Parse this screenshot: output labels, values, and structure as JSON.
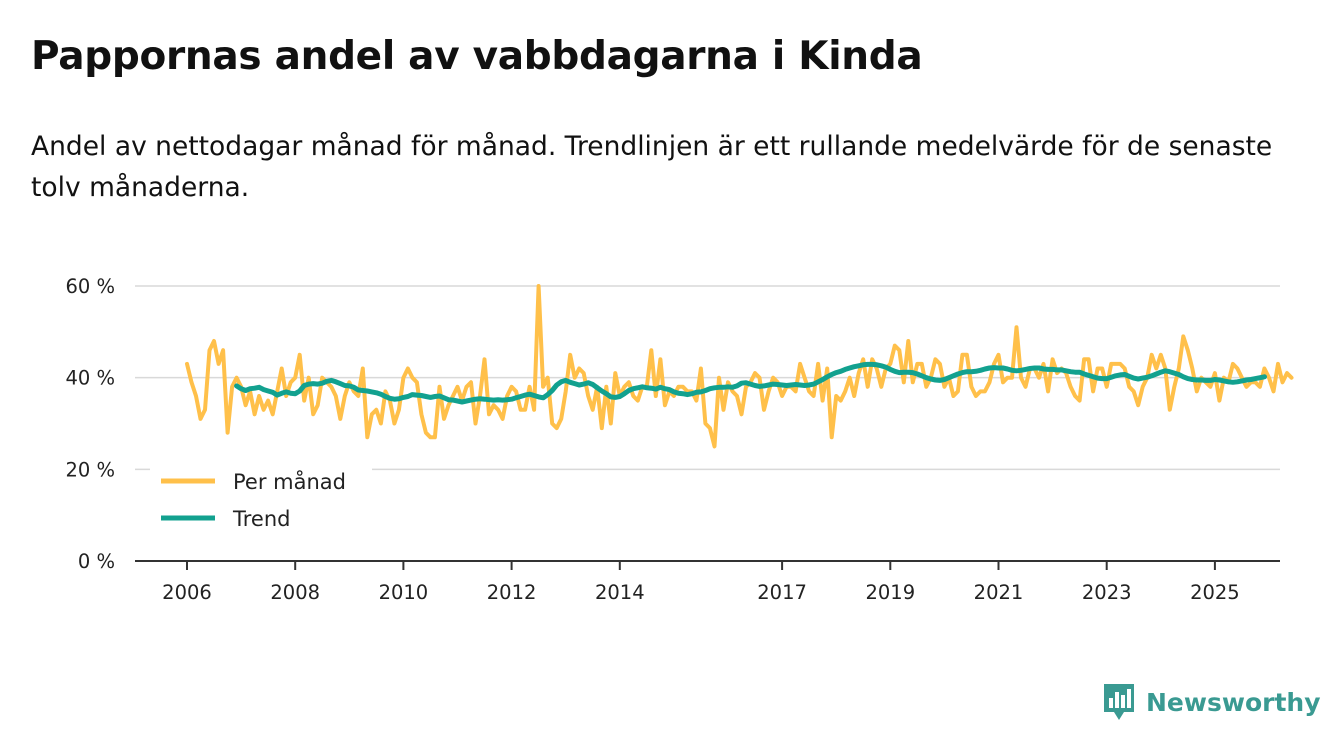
{
  "title": "Pappornas andel av vabbdagarna i Kinda",
  "subtitle": "Andel av nettodagar månad för månad. Trendlinjen är ett rullande medelvärde för de senaste tolv månaderna.",
  "brand": {
    "name": "Newsworthy",
    "icon": "bar-chart-speech-bubble-icon",
    "color": "#3a9a92"
  },
  "chart_data": {
    "type": "line",
    "title": "Pappornas andel av vabbdagarna i Kinda",
    "xlabel": "",
    "ylabel": "",
    "ylim": [
      0,
      60
    ],
    "xlim": [
      2006.0,
      2025.5
    ],
    "y_ticks": [
      0,
      20,
      40,
      60
    ],
    "y_tick_labels": [
      "0 %",
      "20 %",
      "40 %",
      "60 %"
    ],
    "x_ticks": [
      2006,
      2008,
      2010,
      2012,
      2014,
      2017,
      2019,
      2021,
      2023,
      2025
    ],
    "x_tick_labels": [
      "2006",
      "2008",
      "2010",
      "2012",
      "2014",
      "2017",
      "2019",
      "2021",
      "2023",
      "2025"
    ],
    "grid": true,
    "legend_position": "bottom-left",
    "series": [
      {
        "name": "Per månad",
        "color": "#ffc04a",
        "x_start": 2006.0,
        "x_step": 0.08333,
        "values": [
          43,
          39,
          36,
          31,
          33,
          46,
          48,
          43,
          46,
          28,
          38,
          40,
          38,
          34,
          37,
          32,
          36,
          33,
          35,
          32,
          37,
          42,
          36,
          39,
          40,
          45,
          35,
          40,
          32,
          34,
          40,
          39,
          38,
          36,
          31,
          36,
          39,
          37,
          36,
          42,
          27,
          32,
          33,
          30,
          37,
          35,
          30,
          33,
          40,
          42,
          40,
          39,
          32,
          28,
          27,
          27,
          38,
          31,
          34,
          36,
          38,
          35,
          38,
          39,
          30,
          36,
          44,
          32,
          34,
          33,
          31,
          36,
          38,
          37,
          33,
          33,
          38,
          33,
          60,
          38,
          40,
          30,
          29,
          31,
          37,
          45,
          40,
          42,
          41,
          36,
          33,
          38,
          29,
          38,
          30,
          41,
          36,
          38,
          39,
          36,
          35,
          38,
          38,
          46,
          36,
          44,
          34,
          37,
          36,
          38,
          38,
          37,
          37,
          35,
          42,
          30,
          29,
          25,
          40,
          33,
          39,
          37,
          36,
          32,
          38,
          39,
          41,
          40,
          33,
          37,
          40,
          39,
          36,
          38,
          38,
          37,
          43,
          40,
          37,
          36,
          43,
          35,
          42,
          27,
          36,
          35,
          37,
          40,
          36,
          41,
          44,
          38,
          44,
          42,
          38,
          42,
          43,
          47,
          46,
          39,
          48,
          39,
          43,
          43,
          38,
          40,
          44,
          43,
          38,
          40,
          36,
          37,
          45,
          45,
          38,
          36,
          37,
          37,
          39,
          43,
          45,
          39,
          40,
          40,
          51,
          40,
          38,
          42,
          42,
          40,
          43,
          37,
          44,
          41,
          42,
          41,
          38,
          36,
          35,
          44,
          44,
          37,
          42,
          42,
          38,
          43,
          43,
          43,
          42,
          38,
          37,
          34,
          38,
          40,
          45,
          42,
          45,
          42,
          33,
          38,
          42,
          49,
          46,
          42,
          37,
          40,
          39,
          38,
          41,
          35,
          40,
          39,
          43,
          42,
          40,
          38,
          39,
          39,
          38,
          42,
          40,
          37,
          43,
          39,
          41,
          40
        ]
      },
      {
        "name": "Trend",
        "color": "#12a18f",
        "x_start": 2006.917,
        "x_step": 0.08333,
        "values": [
          38.2,
          37.6,
          37.2,
          37.6,
          37.7,
          37.9,
          37.4,
          37.1,
          36.8,
          36.2,
          36.6,
          36.9,
          36.6,
          36.5,
          37.1,
          38.3,
          38.6,
          38.7,
          38.6,
          38.8,
          39.2,
          39.4,
          39.1,
          38.7,
          38.3,
          38.2,
          37.9,
          37.3,
          37.2,
          37.1,
          36.9,
          36.7,
          36.4,
          35.9,
          35.5,
          35.3,
          35.4,
          35.7,
          35.9,
          36.3,
          36.2,
          36.1,
          35.9,
          35.7,
          35.9,
          36,
          35.6,
          35.2,
          35.1,
          34.9,
          34.7,
          34.9,
          35.1,
          35.3,
          35.4,
          35.3,
          35.2,
          35.1,
          35.2,
          35.1,
          35.2,
          35.3,
          35.6,
          35.9,
          36.2,
          36.4,
          36.1,
          35.8,
          35.6,
          36.3,
          37.2,
          38.4,
          39.1,
          39.4,
          39,
          38.7,
          38.4,
          38.6,
          38.9,
          38.5,
          37.8,
          37.1,
          36.5,
          35.8,
          35.7,
          35.9,
          36.5,
          37.2,
          37.6,
          37.8,
          38,
          37.8,
          37.7,
          37.5,
          37.9,
          37.6,
          37.4,
          36.9,
          36.6,
          36.5,
          36.3,
          36.5,
          36.8,
          36.9,
          37.2,
          37.6,
          37.8,
          37.9,
          37.9,
          38,
          37.9,
          38.2,
          38.8,
          38.9,
          38.6,
          38.3,
          38.1,
          38.2,
          38.4,
          38.6,
          38.5,
          38.4,
          38.3,
          38.4,
          38.5,
          38.4,
          38.3,
          38.4,
          38.6,
          39.1,
          39.6,
          40.2,
          40.7,
          41.1,
          41.4,
          41.8,
          42.1,
          42.4,
          42.6,
          42.8,
          42.9,
          42.9,
          42.8,
          42.6,
          42.3,
          41.8,
          41.4,
          41.1,
          41.2,
          41.2,
          41.1,
          40.8,
          40.4,
          40.0,
          39.7,
          39.5,
          39.4,
          39.6,
          40,
          40.4,
          40.8,
          41.1,
          41.3,
          41.3,
          41.4,
          41.6,
          41.9,
          42.1,
          42.2,
          42.1,
          42.1,
          41.9,
          41.6,
          41.5,
          41.6,
          41.8,
          42,
          42.1,
          42.1,
          41.9,
          41.8,
          41.8,
          41.7,
          41.7,
          41.5,
          41.3,
          41.2,
          41.2,
          40.8,
          40.5,
          40.2,
          39.9,
          39.8,
          39.8,
          40.1,
          40.4,
          40.6,
          40.7,
          40.3,
          39.9,
          39.7,
          39.9,
          40.1,
          40.4,
          40.8,
          41.2,
          41.5,
          41.3,
          41,
          40.7,
          40.2,
          39.8,
          39.6,
          39.5,
          39.5,
          39.4,
          39.4,
          39.6,
          39.5,
          39.3,
          39.1,
          39.0,
          39.1,
          39.3,
          39.5,
          39.6,
          39.8,
          40,
          40.2
        ]
      }
    ]
  }
}
